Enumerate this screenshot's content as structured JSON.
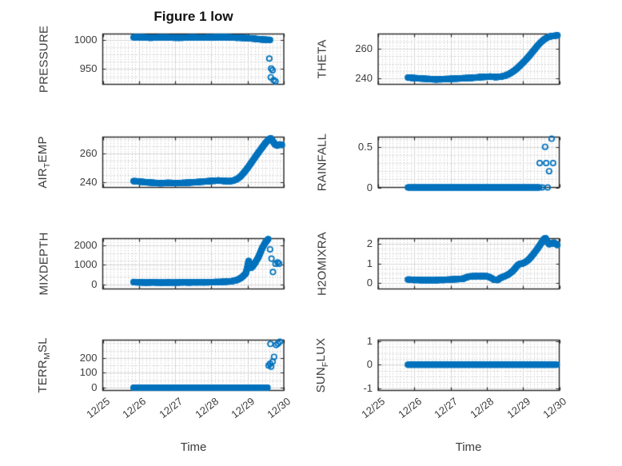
{
  "figure": {
    "title": "Figure 1 low",
    "xlabel": "Time",
    "background": "#ffffff",
    "marker_color": "#0072BD",
    "axis_color": "#262626",
    "tick_label_color": "#3d3d3d",
    "grid_color": "#d9d9d9",
    "minor_grid_color": "#bdbdbd"
  },
  "chart_data": {
    "type": "scatter",
    "marker": "open-circle",
    "grid": "on",
    "minor_grid": "dotted",
    "legend": "none",
    "x_axis": {
      "label": "Time",
      "unit_note": "days, ticks are dates",
      "lim": [
        0,
        5
      ],
      "tick_values": [
        0,
        1,
        2,
        3,
        4,
        5
      ],
      "tick_labels": [
        "12/25",
        "12/26",
        "12/27",
        "12/28",
        "12/29",
        "12/30"
      ],
      "minor_step": 0.1,
      "tick_angle_deg": -38
    },
    "subplots": [
      {
        "name": "PRESSURE",
        "row": 0,
        "col": 0,
        "ylabel_parts": [
          {
            "text": "PRESSURE",
            "sub": false
          }
        ],
        "ylim": [
          924,
          1010
        ],
        "yticks": [
          950,
          1000
        ],
        "ytick_labels": [
          "950",
          "1000"
        ],
        "y_minor_step": 12.5,
        "dense": [
          [
            0.85,
            1004.3
          ],
          [
            1.0,
            1004.6
          ],
          [
            1.15,
            1004.2
          ],
          [
            1.3,
            1003.6
          ],
          [
            1.5,
            1003.9
          ],
          [
            1.7,
            1004.3
          ],
          [
            1.9,
            1003.8
          ],
          [
            2.1,
            1003.5
          ],
          [
            2.3,
            1003.9
          ],
          [
            2.5,
            1004.2
          ],
          [
            2.7,
            1003.8
          ],
          [
            2.9,
            1004.0
          ],
          [
            3.1,
            1004.4
          ],
          [
            3.3,
            1004.6
          ],
          [
            3.5,
            1004.2
          ],
          [
            3.7,
            1003.6
          ],
          [
            3.9,
            1003.2
          ],
          [
            4.05,
            1002.6
          ],
          [
            4.2,
            1001.8
          ],
          [
            4.35,
            1000.8
          ],
          [
            4.5,
            1000.2
          ],
          [
            4.62,
            999.8
          ]
        ],
        "points": [
          [
            4.6,
            968
          ],
          [
            4.65,
            951
          ],
          [
            4.69,
            948
          ],
          [
            4.64,
            936
          ],
          [
            4.72,
            931
          ],
          [
            4.77,
            929
          ]
        ]
      },
      {
        "name": "THETA",
        "row": 0,
        "col": 1,
        "ylabel_parts": [
          {
            "text": "THETA",
            "sub": false
          }
        ],
        "ylim": [
          236,
          270
        ],
        "yticks": [
          240,
          260
        ],
        "ytick_labels": [
          "240",
          "260"
        ],
        "y_minor_step": 5,
        "dense": [
          [
            0.82,
            240.6
          ],
          [
            1.0,
            240.2
          ],
          [
            1.2,
            239.9
          ],
          [
            1.4,
            239.6
          ],
          [
            1.6,
            239.3
          ],
          [
            1.8,
            239.5
          ],
          [
            2.0,
            239.7
          ],
          [
            2.2,
            239.9
          ],
          [
            2.4,
            240.2
          ],
          [
            2.6,
            240.4
          ],
          [
            2.8,
            240.8
          ],
          [
            3.0,
            241.1
          ],
          [
            3.1,
            241.2
          ],
          [
            3.25,
            240.9
          ],
          [
            3.4,
            241.2
          ],
          [
            3.5,
            241.8
          ],
          [
            3.6,
            242.8
          ],
          [
            3.7,
            244.2
          ],
          [
            3.8,
            246.0
          ],
          [
            3.9,
            248.2
          ],
          [
            4.0,
            250.6
          ],
          [
            4.1,
            253.2
          ],
          [
            4.2,
            256.0
          ],
          [
            4.3,
            259.0
          ],
          [
            4.4,
            262.0
          ],
          [
            4.5,
            264.6
          ],
          [
            4.6,
            266.6
          ],
          [
            4.7,
            268.0
          ],
          [
            4.8,
            268.6
          ],
          [
            4.9,
            268.8
          ],
          [
            4.95,
            269.2
          ]
        ],
        "points": []
      },
      {
        "name": "AIR_TEMP",
        "row": 1,
        "col": 0,
        "ylabel_parts": [
          {
            "text": "AIR",
            "sub": false
          },
          {
            "text": "T",
            "sub": true
          },
          {
            "text": "EMP",
            "sub": false
          }
        ],
        "ylim": [
          236.5,
          271.5
        ],
        "yticks": [
          240,
          260
        ],
        "ytick_labels": [
          "240",
          "260"
        ],
        "y_minor_step": 5,
        "dense": [
          [
            0.85,
            240.9
          ],
          [
            1.0,
            240.6
          ],
          [
            1.2,
            240.1
          ],
          [
            1.4,
            239.7
          ],
          [
            1.6,
            239.4
          ],
          [
            1.8,
            239.7
          ],
          [
            2.0,
            239.5
          ],
          [
            2.2,
            239.6
          ],
          [
            2.4,
            239.9
          ],
          [
            2.6,
            240.2
          ],
          [
            2.8,
            240.6
          ],
          [
            3.0,
            241.0
          ],
          [
            3.2,
            241.3
          ],
          [
            3.35,
            241.0
          ],
          [
            3.5,
            240.8
          ],
          [
            3.6,
            241.2
          ],
          [
            3.7,
            242.2
          ],
          [
            3.8,
            244.0
          ],
          [
            3.9,
            246.8
          ],
          [
            4.0,
            250.0
          ],
          [
            4.1,
            253.6
          ],
          [
            4.2,
            257.2
          ],
          [
            4.3,
            260.8
          ],
          [
            4.4,
            264.2
          ],
          [
            4.5,
            267.6
          ],
          [
            4.58,
            269.8
          ],
          [
            4.64,
            270.6
          ],
          [
            4.7,
            268.6
          ],
          [
            4.76,
            266.2
          ],
          [
            4.82,
            265.6
          ],
          [
            4.88,
            266.4
          ],
          [
            4.95,
            266.0
          ]
        ],
        "points": []
      },
      {
        "name": "RAINFALL",
        "row": 1,
        "col": 1,
        "ylabel_parts": [
          {
            "text": "RAINFALL",
            "sub": false
          }
        ],
        "ylim": [
          0,
          0.62
        ],
        "yticks": [
          0,
          0.5
        ],
        "ytick_labels": [
          "0",
          "0.5"
        ],
        "y_minor_step": 0.1,
        "dense": [
          [
            0.82,
            0
          ],
          [
            4.45,
            0
          ]
        ],
        "points": [
          [
            4.46,
            0.3
          ],
          [
            4.64,
            0.3
          ],
          [
            4.83,
            0.3
          ],
          [
            4.61,
            0.5
          ],
          [
            4.79,
            0.6
          ],
          [
            4.72,
            0.2
          ],
          [
            4.53,
            0
          ],
          [
            4.68,
            0
          ]
        ]
      },
      {
        "name": "MIXDEPTH",
        "row": 2,
        "col": 0,
        "ylabel_parts": [
          {
            "text": "MIXDEPTH",
            "sub": false
          }
        ],
        "ylim": [
          -245,
          2355
        ],
        "yticks": [
          0,
          1000,
          2000
        ],
        "ytick_labels": [
          "0",
          "1000",
          "2000"
        ],
        "y_minor_step": 400,
        "dense": [
          [
            0.85,
            110
          ],
          [
            1.0,
            95
          ],
          [
            1.2,
            85
          ],
          [
            1.4,
            95
          ],
          [
            1.6,
            80
          ],
          [
            1.8,
            90
          ],
          [
            2.0,
            85
          ],
          [
            2.2,
            95
          ],
          [
            2.4,
            90
          ],
          [
            2.6,
            100
          ],
          [
            2.8,
            95
          ],
          [
            3.0,
            105
          ],
          [
            3.2,
            115
          ],
          [
            3.4,
            130
          ],
          [
            3.55,
            150
          ],
          [
            3.7,
            210
          ],
          [
            3.8,
            300
          ],
          [
            3.88,
            420
          ],
          [
            3.95,
            560
          ],
          [
            4.0,
            900
          ],
          [
            4.03,
            1200
          ],
          [
            4.06,
            1050
          ],
          [
            4.1,
            850
          ],
          [
            4.15,
            950
          ],
          [
            4.2,
            1080
          ],
          [
            4.3,
            1400
          ],
          [
            4.4,
            1850
          ],
          [
            4.5,
            2180
          ],
          [
            4.57,
            2330
          ]
        ],
        "points": [
          [
            4.62,
            1800
          ],
          [
            4.66,
            1320
          ],
          [
            4.7,
            630
          ],
          [
            4.77,
            1060
          ],
          [
            4.83,
            1130
          ],
          [
            4.87,
            1060
          ]
        ]
      },
      {
        "name": "H2OMIXRA",
        "row": 2,
        "col": 1,
        "ylabel_parts": [
          {
            "text": "H2OMIXRA",
            "sub": false
          }
        ],
        "ylim": [
          -0.3,
          2.26
        ],
        "yticks": [
          0,
          1,
          2
        ],
        "ytick_labels": [
          "0",
          "1",
          "2"
        ],
        "y_minor_step": 0.25,
        "dense": [
          [
            0.82,
            0.18
          ],
          [
            1.0,
            0.16
          ],
          [
            1.2,
            0.15
          ],
          [
            1.4,
            0.15
          ],
          [
            1.6,
            0.15
          ],
          [
            1.8,
            0.16
          ],
          [
            2.0,
            0.18
          ],
          [
            2.2,
            0.2
          ],
          [
            2.35,
            0.22
          ],
          [
            2.45,
            0.3
          ],
          [
            2.55,
            0.34
          ],
          [
            2.7,
            0.35
          ],
          [
            2.85,
            0.35
          ],
          [
            3.0,
            0.35
          ],
          [
            3.1,
            0.28
          ],
          [
            3.2,
            0.17
          ],
          [
            3.3,
            0.16
          ],
          [
            3.4,
            0.28
          ],
          [
            3.5,
            0.35
          ],
          [
            3.6,
            0.44
          ],
          [
            3.7,
            0.58
          ],
          [
            3.78,
            0.74
          ],
          [
            3.85,
            0.9
          ],
          [
            3.92,
            0.98
          ],
          [
            4.0,
            1.0
          ],
          [
            4.08,
            1.08
          ],
          [
            4.15,
            1.18
          ],
          [
            4.22,
            1.32
          ],
          [
            4.3,
            1.5
          ],
          [
            4.38,
            1.7
          ],
          [
            4.45,
            1.88
          ],
          [
            4.52,
            2.08
          ],
          [
            4.58,
            2.24
          ],
          [
            4.62,
            2.28
          ],
          [
            4.67,
            2.1
          ],
          [
            4.72,
            1.98
          ],
          [
            4.78,
            2.0
          ],
          [
            4.85,
            2.05
          ],
          [
            4.9,
            2.0
          ],
          [
            4.95,
            1.93
          ]
        ],
        "points": []
      },
      {
        "name": "TERR_MSL",
        "row": 3,
        "col": 0,
        "ylabel_parts": [
          {
            "text": "TERR",
            "sub": false
          },
          {
            "text": "M",
            "sub": true
          },
          {
            "text": "SL",
            "sub": false
          }
        ],
        "ylim": [
          -19,
          321
        ],
        "yticks": [
          0,
          100,
          200
        ],
        "ytick_labels": [
          "0",
          "100",
          "200"
        ],
        "y_minor_step": 50,
        "dense": [
          [
            0.85,
            0
          ],
          [
            4.55,
            0
          ]
        ],
        "points": [
          [
            4.58,
            150
          ],
          [
            4.62,
            162
          ],
          [
            4.65,
            142
          ],
          [
            4.69,
            175
          ],
          [
            4.73,
            208
          ],
          [
            4.63,
            295
          ],
          [
            4.79,
            288
          ],
          [
            4.84,
            298
          ],
          [
            4.89,
            310
          ]
        ]
      },
      {
        "name": "SUN_FLUX",
        "row": 3,
        "col": 1,
        "ylabel_parts": [
          {
            "text": "SUN",
            "sub": false
          },
          {
            "text": "F",
            "sub": true
          },
          {
            "text": "LUX",
            "sub": false
          }
        ],
        "ylim": [
          -1.1,
          1.05
        ],
        "yticks": [
          -1,
          0,
          1
        ],
        "ytick_labels": [
          "-1",
          "0",
          "1"
        ],
        "y_minor_step": 0.25,
        "dense": [
          [
            0.82,
            0
          ],
          [
            4.93,
            0
          ]
        ],
        "points": []
      }
    ]
  }
}
